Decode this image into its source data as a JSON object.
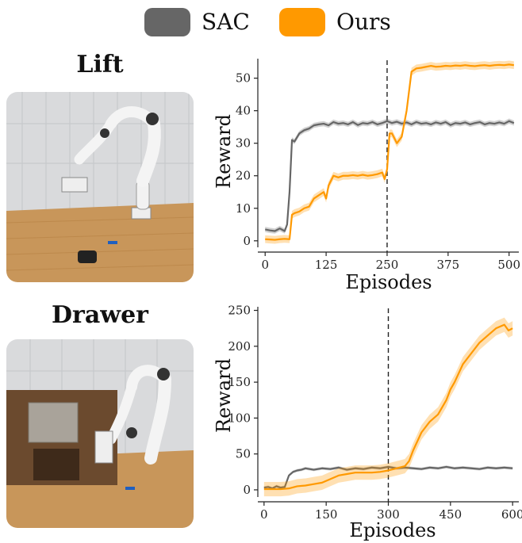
{
  "legend": [
    {
      "label": "SAC",
      "color": "#666666"
    },
    {
      "label": "Ours",
      "color": "#FF9900"
    }
  ],
  "tasks": [
    {
      "title": "Lift",
      "photo_icon": "franka-robot-arm-lift-photo"
    },
    {
      "title": "Drawer",
      "photo_icon": "franka-robot-arm-drawer-photo"
    }
  ],
  "chart_data": [
    {
      "type": "line",
      "task": "Lift",
      "xlabel": "Episodes",
      "ylabel": "Reward",
      "xlim": [
        -15,
        520
      ],
      "ylim": [
        -2,
        56
      ],
      "xticks": [
        0,
        125,
        250,
        375,
        500
      ],
      "yticks": [
        0,
        10,
        20,
        30,
        40,
        50
      ],
      "vline_x": 250,
      "grid": false,
      "series": [
        {
          "name": "SAC",
          "color": "#666666",
          "x": [
            0,
            10,
            20,
            30,
            40,
            45,
            50,
            55,
            60,
            70,
            80,
            90,
            100,
            110,
            120,
            130,
            140,
            150,
            160,
            170,
            180,
            190,
            200,
            210,
            220,
            230,
            240,
            250,
            260,
            270,
            280,
            290,
            300,
            310,
            320,
            330,
            340,
            350,
            360,
            370,
            380,
            390,
            400,
            410,
            420,
            430,
            440,
            450,
            460,
            470,
            480,
            490,
            500,
            510
          ],
          "y": [
            3.5,
            3.2,
            3.0,
            3.8,
            3.0,
            5,
            15,
            31,
            30.5,
            33,
            34,
            34.5,
            35.5,
            35.8,
            36,
            35.5,
            36.5,
            36,
            36.2,
            35.8,
            36.5,
            35.6,
            36.2,
            36,
            36.5,
            35.8,
            36.2,
            36.8,
            36.2,
            36.6,
            36,
            36.4,
            35.8,
            36.5,
            36,
            36.2,
            35.8,
            36.4,
            36,
            36.5,
            35.6,
            36.2,
            36,
            36.4,
            35.8,
            36.2,
            36.5,
            35.8,
            36.2,
            36,
            36.4,
            36,
            36.8,
            36.2
          ],
          "band": 0.8
        },
        {
          "name": "Ours",
          "color": "#FF9900",
          "x": [
            0,
            10,
            20,
            30,
            40,
            50,
            55,
            60,
            70,
            80,
            90,
            100,
            110,
            120,
            125,
            130,
            140,
            150,
            160,
            170,
            180,
            190,
            200,
            210,
            220,
            230,
            240,
            245,
            250,
            255,
            260,
            270,
            280,
            290,
            300,
            310,
            320,
            330,
            340,
            350,
            360,
            370,
            380,
            390,
            400,
            410,
            420,
            430,
            440,
            450,
            460,
            470,
            480,
            490,
            500,
            510
          ],
          "y": [
            0.5,
            0.4,
            0.3,
            0.5,
            0.6,
            0.5,
            8,
            8.5,
            9,
            10,
            10.5,
            13,
            14,
            15,
            13,
            17,
            20,
            19.5,
            20,
            20,
            20.2,
            20,
            20.3,
            20,
            20.2,
            20.5,
            21,
            19,
            22,
            33,
            33,
            30,
            32,
            40,
            52,
            53,
            53.2,
            53.5,
            53.8,
            53.5,
            53.6,
            53.8,
            53.7,
            53.9,
            53.8,
            54,
            53.8,
            53.7,
            53.9,
            54,
            53.8,
            54,
            54.1,
            54,
            54.2,
            54
          ],
          "band": 1.2
        }
      ]
    },
    {
      "type": "line",
      "task": "Drawer",
      "xlabel": "Episodes",
      "ylabel": "Reward",
      "xlim": [
        -15,
        615
      ],
      "ylim": [
        -10,
        255
      ],
      "xticks": [
        0,
        150,
        300,
        450,
        600
      ],
      "yticks": [
        0,
        50,
        100,
        150,
        200,
        250
      ],
      "vline_x": 300,
      "grid": false,
      "series": [
        {
          "name": "SAC",
          "color": "#666666",
          "x": [
            0,
            10,
            20,
            30,
            40,
            50,
            60,
            70,
            80,
            90,
            100,
            120,
            140,
            160,
            180,
            200,
            220,
            240,
            260,
            280,
            300,
            320,
            340,
            360,
            380,
            400,
            420,
            440,
            460,
            480,
            500,
            520,
            540,
            560,
            580,
            600
          ],
          "y": [
            3,
            4,
            2,
            5,
            3,
            4,
            20,
            25,
            27,
            28,
            30,
            28,
            30,
            29,
            31,
            28,
            30,
            29,
            31,
            30,
            32,
            30,
            31,
            30,
            29,
            31,
            30,
            32,
            30,
            31,
            30,
            29,
            31,
            30,
            31,
            30
          ],
          "band": 2
        },
        {
          "name": "Ours",
          "color": "#FF9900",
          "x": [
            0,
            20,
            40,
            60,
            80,
            100,
            120,
            140,
            160,
            180,
            200,
            220,
            240,
            260,
            280,
            300,
            320,
            340,
            350,
            360,
            380,
            400,
            420,
            440,
            450,
            460,
            480,
            500,
            520,
            540,
            560,
            580,
            590,
            600
          ],
          "y": [
            1,
            1,
            1,
            2,
            5,
            6,
            8,
            10,
            15,
            20,
            22,
            24,
            24,
            24,
            25,
            27,
            30,
            33,
            40,
            55,
            80,
            95,
            105,
            125,
            140,
            150,
            175,
            190,
            205,
            215,
            225,
            230,
            222,
            225
          ],
          "band": 10
        }
      ]
    }
  ]
}
